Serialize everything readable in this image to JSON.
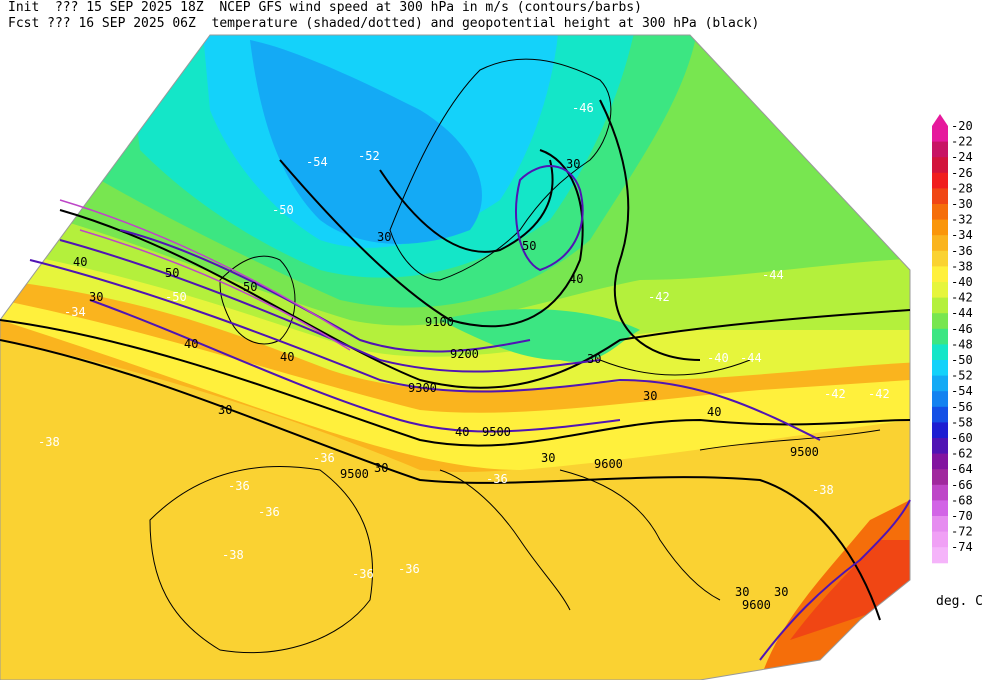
{
  "header": {
    "line1": "Init  ??? 15 SEP 2025 18Z  NCEP GFS wind speed at 300 hPa in m/s (contours/barbs)",
    "line2": "Fcst ??? 16 SEP 2025 06Z  temperature (shaded/dotted) and geopotential height at 300 hPa (black)"
  },
  "colorbar": {
    "units": "deg. C",
    "levels": [
      {
        "label": "-20",
        "color": "#e6199c"
      },
      {
        "label": "-22",
        "color": "#c81464"
      },
      {
        "label": "-24",
        "color": "#d2143c"
      },
      {
        "label": "-26",
        "color": "#f01e1e"
      },
      {
        "label": "-28",
        "color": "#f04614"
      },
      {
        "label": "-30",
        "color": "#f56e0a"
      },
      {
        "label": "-32",
        "color": "#fa960a"
      },
      {
        "label": "-34",
        "color": "#fab41e"
      },
      {
        "label": "-36",
        "color": "#fad232"
      },
      {
        "label": "-38",
        "color": "#fff03c"
      },
      {
        "label": "-40",
        "color": "#e6f53c"
      },
      {
        "label": "-42",
        "color": "#b4f03c"
      },
      {
        "label": "-44",
        "color": "#78e650"
      },
      {
        "label": "-46",
        "color": "#3ce682"
      },
      {
        "label": "-48",
        "color": "#14e6c8"
      },
      {
        "label": "-50",
        "color": "#14d2fa"
      },
      {
        "label": "-52",
        "color": "#14aaf5"
      },
      {
        "label": "-54",
        "color": "#1482f0"
      },
      {
        "label": "-56",
        "color": "#1450e6"
      },
      {
        "label": "-58",
        "color": "#1e1ed2"
      },
      {
        "label": "-60",
        "color": "#5014b4"
      },
      {
        "label": "-62",
        "color": "#8214a0"
      },
      {
        "label": "-64",
        "color": "#a0289e"
      },
      {
        "label": "-66",
        "color": "#be46c8"
      },
      {
        "label": "-68",
        "color": "#d264e6"
      },
      {
        "label": "-70",
        "color": "#e68cf0"
      },
      {
        "label": "-72",
        "color": "#f0a0f5"
      },
      {
        "label": "-74",
        "color": "#f5b4fa"
      }
    ]
  },
  "map_labels": {
    "height": [
      "9100",
      "9200",
      "9300",
      "9500",
      "9500",
      "9500",
      "9600",
      "9600"
    ],
    "wind": [
      "30",
      "30",
      "30",
      "30",
      "40",
      "40",
      "40",
      "50",
      "50",
      "50",
      "30",
      "40",
      "30",
      "30",
      "30",
      "40",
      "40",
      "30",
      "30"
    ],
    "temperature": [
      "-34",
      "-38",
      "-36",
      "-36",
      "-36",
      "-36",
      "-36",
      "-38",
      "-38",
      "-40",
      "-42",
      "-42",
      "-44",
      "-44",
      "-46",
      "-50",
      "-50",
      "-52",
      "-54",
      "-36",
      "-42"
    ]
  }
}
